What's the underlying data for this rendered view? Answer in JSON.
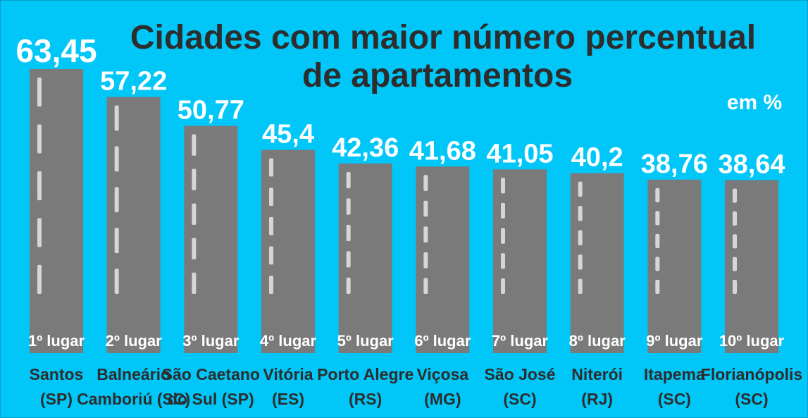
{
  "chart_data": {
    "type": "bar",
    "title_lines": [
      "Cidades com maior número percentual",
      "de apartamentos"
    ],
    "unit_label": "em %",
    "value_labels": [
      "63,45",
      "57,22",
      "50,77",
      "45,4",
      "42,36",
      "41,68",
      "41,05",
      "40,2",
      "38,76",
      "38,64"
    ],
    "values": [
      63.45,
      57.22,
      50.77,
      45.4,
      42.36,
      41.68,
      41.05,
      40.2,
      38.76,
      38.64
    ],
    "ranks": [
      "1º lugar",
      "2º lugar",
      "3º lugar",
      "4º lugar",
      "5º lugar",
      "6º lugar",
      "7º lugar",
      "8º lugar",
      "9º lugar",
      "10º lugar"
    ],
    "categories": [
      [
        "Santos",
        "(SP)"
      ],
      [
        "Balneário",
        "Camboriú (SC)"
      ],
      [
        "São Caetano",
        "do Sul (SP)"
      ],
      [
        "Vitória",
        "(ES)"
      ],
      [
        "Porto Alegre",
        "(RS)"
      ],
      [
        "Viçosa",
        "(MG)"
      ],
      [
        "São José",
        "(SC)"
      ],
      [
        "Niterói",
        "(RJ)"
      ],
      [
        "Itapema",
        "(SC)"
      ],
      [
        "Florianópolis",
        "(SC)"
      ]
    ],
    "ylim": [
      0,
      63.45
    ],
    "colors": {
      "background": "#00c7f8",
      "bar": "#7a7a7a",
      "dash": "#d6d6d6",
      "title": "#2d2d2d",
      "value_text": "#ffffff",
      "city_text": "#2d2d2d"
    }
  }
}
